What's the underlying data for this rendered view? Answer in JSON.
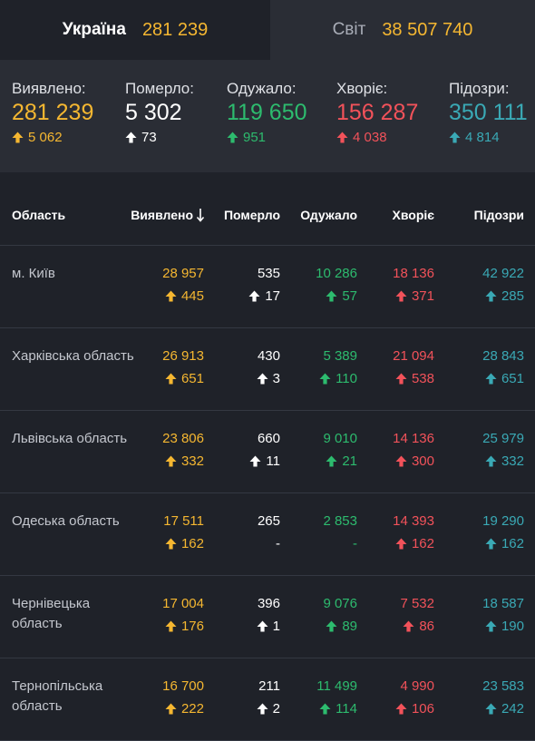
{
  "tabs": {
    "ukraine": {
      "label": "Україна",
      "value": "281 239"
    },
    "world": {
      "label": "Світ",
      "value": "38 507 740"
    }
  },
  "summary": [
    {
      "key": "confirmed",
      "label": "Виявлено:",
      "value": "281 239",
      "delta": "5 062",
      "color": "#f5b731"
    },
    {
      "key": "deaths",
      "label": "Померло:",
      "value": "5 302",
      "delta": "73",
      "color": "#ffffff"
    },
    {
      "key": "recovered",
      "label": "Одужало:",
      "value": "119 650",
      "delta": "951",
      "color": "#2dbb6e"
    },
    {
      "key": "sick",
      "label": "Хворіє:",
      "value": "156 287",
      "delta": "4 038",
      "color": "#f2525a"
    },
    {
      "key": "suspected",
      "label": "Підозри:",
      "value": "350 111",
      "delta": "4 814",
      "color": "#3aa9b5"
    }
  ],
  "table": {
    "headers": {
      "region": "Область",
      "confirmed": "Виявлено",
      "deaths": "Померло",
      "recovered": "Одужало",
      "sick": "Хворіє",
      "suspected": "Підозри"
    },
    "sort_icon": "arrow-down-icon",
    "rows": [
      {
        "region": "м. Київ",
        "confirmed": "28 957",
        "confirmed_d": "445",
        "deaths": "535",
        "deaths_d": "17",
        "recovered": "10 286",
        "recovered_d": "57",
        "sick": "18 136",
        "sick_d": "371",
        "suspected": "42 922",
        "suspected_d": "285"
      },
      {
        "region": "Харківська область",
        "confirmed": "26 913",
        "confirmed_d": "651",
        "deaths": "430",
        "deaths_d": "3",
        "recovered": "5 389",
        "recovered_d": "110",
        "sick": "21 094",
        "sick_d": "538",
        "suspected": "28 843",
        "suspected_d": "651"
      },
      {
        "region": "Львівська область",
        "confirmed": "23 806",
        "confirmed_d": "332",
        "deaths": "660",
        "deaths_d": "11",
        "recovered": "9 010",
        "recovered_d": "21",
        "sick": "14 136",
        "sick_d": "300",
        "suspected": "25 979",
        "suspected_d": "332"
      },
      {
        "region": "Одеська область",
        "confirmed": "17 511",
        "confirmed_d": "162",
        "deaths": "265",
        "deaths_d": "-",
        "recovered": "2 853",
        "recovered_d": "-",
        "sick": "14 393",
        "sick_d": "162",
        "suspected": "19 290",
        "suspected_d": "162"
      },
      {
        "region": "Чернівецька область",
        "confirmed": "17 004",
        "confirmed_d": "176",
        "deaths": "396",
        "deaths_d": "1",
        "recovered": "9 076",
        "recovered_d": "89",
        "sick": "7 532",
        "sick_d": "86",
        "suspected": "18 587",
        "suspected_d": "190"
      },
      {
        "region": "Тернопільська область",
        "confirmed": "16 700",
        "confirmed_d": "222",
        "deaths": "211",
        "deaths_d": "2",
        "recovered": "11 499",
        "recovered_d": "114",
        "sick": "4 990",
        "sick_d": "106",
        "suspected": "23 583",
        "suspected_d": "242"
      }
    ]
  },
  "colors": {
    "confirmed": "#f5b731",
    "deaths": "#ffffff",
    "recovered": "#2dbb6e",
    "sick": "#f2525a",
    "suspected": "#3aa9b5"
  }
}
